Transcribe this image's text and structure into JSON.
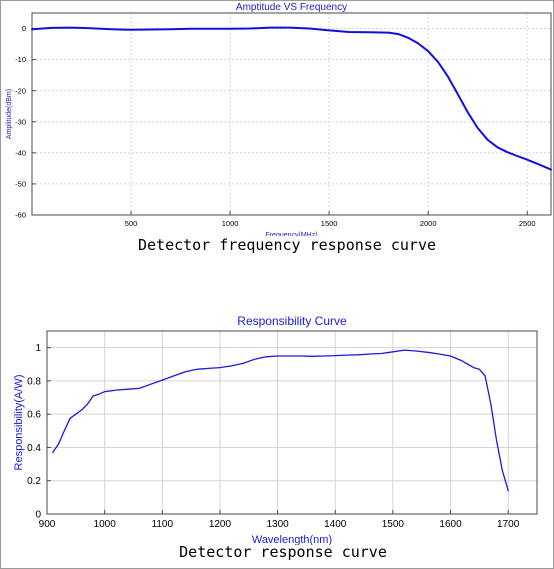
{
  "charts": [
    {
      "caption": "Detector frequency response curve",
      "chart_data": {
        "type": "line",
        "title": "Amptitude VS Frequency",
        "xlabel": "Frequency(MHz)",
        "ylabel": "Amplitude(dBm)",
        "xlim": [
          0,
          2620
        ],
        "ylim": [
          -60,
          5
        ],
        "xticks": [
          500,
          1000,
          1500,
          2000,
          2500
        ],
        "yticks": [
          0,
          -10,
          -20,
          -30,
          -40,
          -50,
          -60
        ],
        "grid": true,
        "series_color": "#1010e0",
        "axis_text_color": "#2020c0",
        "series": [
          {
            "x": [
              0,
              100,
              200,
              300,
              400,
              500,
              600,
              700,
              800,
              900,
              1000,
              1100,
              1200,
              1300,
              1400,
              1500,
              1600,
              1700,
              1800,
              1850,
              1900,
              1950,
              2000,
              2050,
              2100,
              2150,
              2200,
              2250,
              2300,
              2350,
              2400,
              2450,
              2500,
              2550,
              2600,
              2620
            ],
            "y": [
              -0.2,
              0.2,
              0.3,
              0.1,
              -0.2,
              -0.4,
              -0.3,
              -0.2,
              -0.1,
              -0.1,
              -0.1,
              0.0,
              0.3,
              0.3,
              0.0,
              -0.6,
              -1.1,
              -1.2,
              -1.3,
              -1.8,
              -3.0,
              -4.8,
              -7.3,
              -10.8,
              -15.5,
              -21.2,
              -27.0,
              -32.0,
              -35.8,
              -38.2,
              -39.8,
              -41.0,
              -42.2,
              -43.5,
              -44.8,
              -45.4
            ]
          }
        ]
      }
    },
    {
      "caption": "Detector response curve",
      "chart_data": {
        "type": "line",
        "title": "Responsibility Curve",
        "xlabel": "Wavelength(nm)",
        "ylabel": "Responsibility(A/W)",
        "xlim": [
          900,
          1750
        ],
        "ylim": [
          0,
          1.1
        ],
        "xticks": [
          900,
          1000,
          1100,
          1200,
          1300,
          1400,
          1500,
          1600,
          1700
        ],
        "yticks": [
          0,
          0.2,
          0.4,
          0.6,
          0.8,
          1
        ],
        "grid": true,
        "series_color": "#1a1ae0",
        "axis_text_color": "#1a1ae0",
        "series": [
          {
            "x": [
              910,
              920,
              930,
              940,
              950,
              960,
              970,
              980,
              990,
              1000,
              1020,
              1040,
              1060,
              1080,
              1100,
              1120,
              1140,
              1160,
              1180,
              1200,
              1220,
              1240,
              1260,
              1280,
              1300,
              1320,
              1340,
              1360,
              1380,
              1400,
              1420,
              1440,
              1460,
              1480,
              1500,
              1520,
              1540,
              1560,
              1580,
              1600,
              1620,
              1640,
              1650,
              1660,
              1670,
              1680,
              1690,
              1700
            ],
            "y": [
              0.37,
              0.42,
              0.5,
              0.575,
              0.6,
              0.625,
              0.66,
              0.71,
              0.72,
              0.735,
              0.745,
              0.75,
              0.755,
              0.78,
              0.805,
              0.83,
              0.855,
              0.87,
              0.875,
              0.88,
              0.89,
              0.905,
              0.93,
              0.945,
              0.95,
              0.95,
              0.95,
              0.948,
              0.95,
              0.952,
              0.955,
              0.957,
              0.962,
              0.965,
              0.975,
              0.985,
              0.98,
              0.972,
              0.962,
              0.95,
              0.92,
              0.88,
              0.87,
              0.83,
              0.66,
              0.44,
              0.26,
              0.14
            ]
          }
        ]
      }
    }
  ]
}
